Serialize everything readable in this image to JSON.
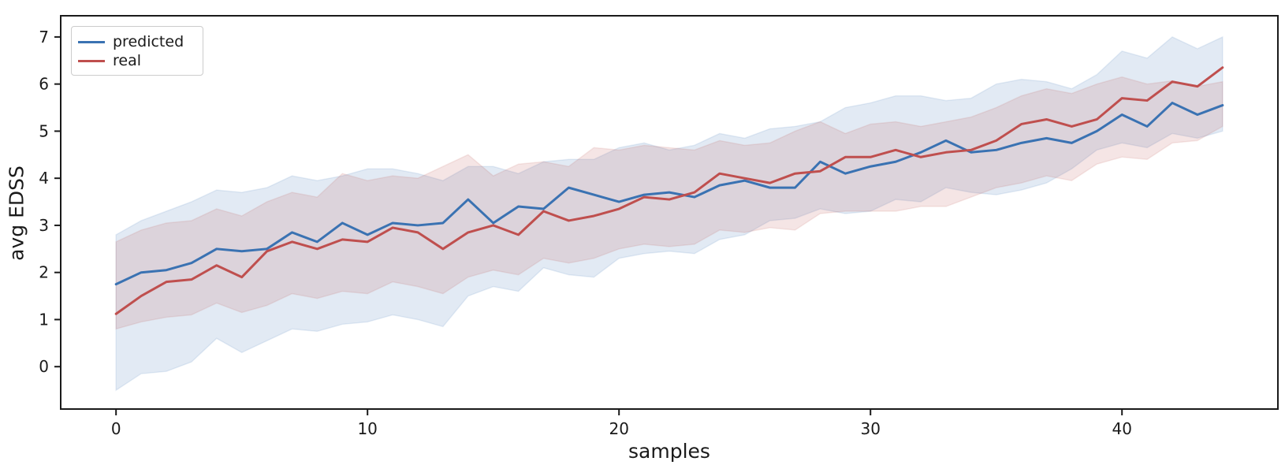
{
  "chart_data": {
    "type": "line",
    "title": "",
    "xlabel": "samples",
    "ylabel": "avg EDSS",
    "x_start": 0,
    "x_step": 1,
    "n_points": 45,
    "xlim": [
      -2.2,
      46.2
    ],
    "ylim": [
      -0.9,
      7.45
    ],
    "xticks": [
      0,
      10,
      20,
      30,
      40
    ],
    "yticks": [
      0,
      1,
      2,
      3,
      4,
      5,
      6,
      7
    ],
    "grid": false,
    "legend_position": "upper-left",
    "axis_color": "#1a1a1a",
    "band_opacity": 0.15,
    "series": [
      {
        "name": "predicted",
        "color": "#3a72b2",
        "values": [
          1.75,
          2.0,
          2.05,
          2.2,
          2.5,
          2.45,
          2.5,
          2.85,
          2.65,
          3.05,
          2.8,
          3.05,
          3.0,
          3.05,
          3.55,
          3.05,
          3.4,
          3.35,
          3.8,
          3.65,
          3.5,
          3.65,
          3.7,
          3.6,
          3.85,
          3.95,
          3.8,
          3.8,
          4.35,
          4.1,
          4.25,
          4.35,
          4.55,
          4.8,
          4.55,
          4.6,
          4.75,
          4.85,
          4.75,
          5.0,
          5.35,
          5.1,
          5.6,
          5.35,
          5.55
        ],
        "band_lower": [
          -0.5,
          -0.15,
          -0.1,
          0.1,
          0.6,
          0.3,
          0.55,
          0.8,
          0.75,
          0.9,
          0.95,
          1.1,
          1.0,
          0.85,
          1.5,
          1.7,
          1.6,
          2.1,
          1.95,
          1.9,
          2.3,
          2.4,
          2.45,
          2.4,
          2.7,
          2.8,
          3.1,
          3.15,
          3.35,
          3.25,
          3.3,
          3.55,
          3.5,
          3.8,
          3.7,
          3.65,
          3.75,
          3.9,
          4.2,
          4.6,
          4.75,
          4.65,
          4.95,
          4.85,
          5.0
        ],
        "band_upper": [
          2.8,
          3.1,
          3.3,
          3.5,
          3.75,
          3.7,
          3.8,
          4.05,
          3.95,
          4.05,
          4.2,
          4.2,
          4.1,
          3.95,
          4.25,
          4.25,
          4.1,
          4.35,
          4.4,
          4.4,
          4.65,
          4.75,
          4.6,
          4.7,
          4.95,
          4.85,
          5.05,
          5.1,
          5.2,
          5.5,
          5.6,
          5.75,
          5.75,
          5.65,
          5.7,
          6.0,
          6.1,
          6.05,
          5.9,
          6.2,
          6.7,
          6.55,
          7.0,
          6.75,
          7.0
        ]
      },
      {
        "name": "real",
        "color": "#bf4f4e",
        "values": [
          1.12,
          1.5,
          1.8,
          1.85,
          2.15,
          1.9,
          2.45,
          2.65,
          2.5,
          2.7,
          2.65,
          2.95,
          2.85,
          2.5,
          2.85,
          3.0,
          2.8,
          3.3,
          3.1,
          3.2,
          3.35,
          3.6,
          3.55,
          3.7,
          4.1,
          4.0,
          3.9,
          4.1,
          4.15,
          4.45,
          4.45,
          4.6,
          4.45,
          4.55,
          4.6,
          4.8,
          5.15,
          5.25,
          5.1,
          5.25,
          5.7,
          5.65,
          6.05,
          5.95,
          6.35
        ],
        "band_lower": [
          0.8,
          0.95,
          1.05,
          1.1,
          1.35,
          1.15,
          1.3,
          1.55,
          1.45,
          1.6,
          1.55,
          1.8,
          1.7,
          1.55,
          1.9,
          2.05,
          1.95,
          2.3,
          2.2,
          2.3,
          2.5,
          2.6,
          2.55,
          2.6,
          2.9,
          2.85,
          2.95,
          2.9,
          3.25,
          3.3,
          3.3,
          3.3,
          3.4,
          3.4,
          3.6,
          3.8,
          3.9,
          4.05,
          3.95,
          4.3,
          4.45,
          4.4,
          4.75,
          4.8,
          5.1
        ],
        "band_upper": [
          2.65,
          2.9,
          3.05,
          3.1,
          3.35,
          3.2,
          3.5,
          3.7,
          3.6,
          4.1,
          3.95,
          4.05,
          4.0,
          4.25,
          4.5,
          4.05,
          4.3,
          4.35,
          4.25,
          4.65,
          4.6,
          4.7,
          4.65,
          4.6,
          4.8,
          4.7,
          4.75,
          5.0,
          5.2,
          4.95,
          5.15,
          5.2,
          5.1,
          5.2,
          5.3,
          5.5,
          5.75,
          5.9,
          5.8,
          6.0,
          6.15,
          6.0,
          6.07,
          5.95,
          6.05
        ]
      }
    ]
  }
}
